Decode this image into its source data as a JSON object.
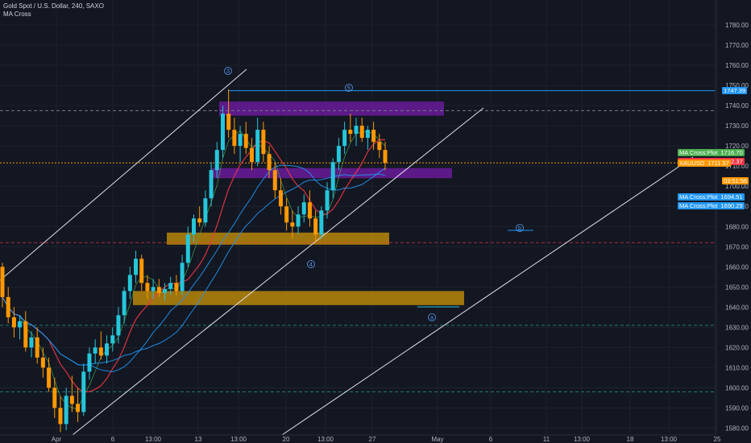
{
  "header": {
    "symbol_line": "Gold Spot / U.S. Dollar, 240, SAXO",
    "indicator": "MA Cross"
  },
  "price_tags": [
    {
      "label": "MA Cross:Plot",
      "value": "1716.70",
      "color": "#4caf50"
    },
    {
      "label": "MA Cross:Plot",
      "value": "1712.37",
      "color": "#f23645"
    },
    {
      "label": "XAUUSD",
      "value": "1711.57",
      "color": "#ff9800"
    },
    {
      "label": "",
      "value": "03:51:56",
      "color": "#ff9800"
    },
    {
      "label": "MA Cross:Plot",
      "value": "1694.51",
      "color": "#2196f3"
    },
    {
      "label": "MA Cross:Plot",
      "value": "1690.29",
      "color": "#2196f3"
    },
    {
      "label": "",
      "value": "1747.39",
      "color": "#2196f3"
    }
  ],
  "wave_labels": [
    "3",
    "4",
    "5",
    "a",
    "b"
  ],
  "colors": {
    "bg": "#131722",
    "up": "#26c6da",
    "down": "#ff9800",
    "grid": "#1e222d",
    "ma_red": "#f23645",
    "ma_blue": "#2196f3",
    "ma_green": "#4caf50",
    "zone_purple": "#7b1fa2",
    "zone_orange": "#b8860b"
  },
  "chart_data": {
    "type": "candlestick",
    "symbol": "XAUUSD",
    "timeframe": "240",
    "ylim": [
      1575,
      1790
    ],
    "y_ticks": [
      1580,
      1590,
      1600,
      1610,
      1620,
      1630,
      1640,
      1650,
      1660,
      1670,
      1680,
      1690,
      1700,
      1710,
      1720,
      1730,
      1740,
      1750,
      1760,
      1770,
      1780
    ],
    "x_ticks": [
      "Apr",
      "6",
      "13:00",
      "13",
      "13:00",
      "20",
      "13:00",
      "27",
      "May",
      "6",
      "11",
      "13:00",
      "18",
      "13:00",
      "25"
    ],
    "candles": [
      [
        1660,
        1662,
        1640,
        1645
      ],
      [
        1645,
        1650,
        1632,
        1635
      ],
      [
        1635,
        1640,
        1625,
        1630
      ],
      [
        1630,
        1636,
        1624,
        1633
      ],
      [
        1633,
        1638,
        1618,
        1620
      ],
      [
        1620,
        1628,
        1615,
        1625
      ],
      [
        1625,
        1630,
        1612,
        1615
      ],
      [
        1615,
        1620,
        1605,
        1610
      ],
      [
        1610,
        1615,
        1598,
        1600
      ],
      [
        1600,
        1605,
        1585,
        1590
      ],
      [
        1590,
        1596,
        1578,
        1582
      ],
      [
        1582,
        1600,
        1579,
        1596
      ],
      [
        1596,
        1606,
        1588,
        1592
      ],
      [
        1592,
        1600,
        1583,
        1588
      ],
      [
        1588,
        1612,
        1586,
        1608
      ],
      [
        1608,
        1620,
        1604,
        1617
      ],
      [
        1617,
        1624,
        1612,
        1620
      ],
      [
        1620,
        1628,
        1614,
        1616
      ],
      [
        1616,
        1626,
        1612,
        1622
      ],
      [
        1622,
        1630,
        1618,
        1626
      ],
      [
        1626,
        1640,
        1622,
        1636
      ],
      [
        1636,
        1650,
        1632,
        1648
      ],
      [
        1648,
        1660,
        1644,
        1656
      ],
      [
        1656,
        1668,
        1652,
        1664
      ],
      [
        1664,
        1666,
        1648,
        1652
      ],
      [
        1652,
        1656,
        1644,
        1648
      ],
      [
        1648,
        1654,
        1644,
        1650
      ],
      [
        1650,
        1654,
        1645,
        1647
      ],
      [
        1647,
        1652,
        1643,
        1649
      ],
      [
        1649,
        1655,
        1646,
        1652
      ],
      [
        1652,
        1656,
        1646,
        1648
      ],
      [
        1648,
        1666,
        1646,
        1662
      ],
      [
        1662,
        1680,
        1660,
        1676
      ],
      [
        1676,
        1686,
        1672,
        1684
      ],
      [
        1684,
        1690,
        1680,
        1682
      ],
      [
        1682,
        1698,
        1680,
        1694
      ],
      [
        1694,
        1712,
        1690,
        1708
      ],
      [
        1708,
        1722,
        1704,
        1718
      ],
      [
        1718,
        1740,
        1714,
        1736
      ],
      [
        1736,
        1748,
        1724,
        1728
      ],
      [
        1728,
        1734,
        1716,
        1720
      ],
      [
        1720,
        1730,
        1712,
        1726
      ],
      [
        1726,
        1732,
        1716,
        1719
      ],
      [
        1719,
        1724,
        1708,
        1712
      ],
      [
        1712,
        1734,
        1710,
        1728
      ],
      [
        1728,
        1732,
        1712,
        1716
      ],
      [
        1716,
        1720,
        1704,
        1708
      ],
      [
        1708,
        1712,
        1694,
        1698
      ],
      [
        1698,
        1704,
        1686,
        1690
      ],
      [
        1690,
        1694,
        1678,
        1682
      ],
      [
        1682,
        1688,
        1674,
        1680
      ],
      [
        1680,
        1690,
        1676,
        1686
      ],
      [
        1686,
        1696,
        1682,
        1692
      ],
      [
        1692,
        1698,
        1680,
        1684
      ],
      [
        1684,
        1688,
        1672,
        1676
      ],
      [
        1676,
        1690,
        1674,
        1688
      ],
      [
        1688,
        1702,
        1684,
        1698
      ],
      [
        1698,
        1714,
        1694,
        1712
      ],
      [
        1712,
        1724,
        1708,
        1720
      ],
      [
        1720,
        1732,
        1716,
        1728
      ],
      [
        1728,
        1736,
        1722,
        1726
      ],
      [
        1726,
        1734,
        1720,
        1730
      ],
      [
        1730,
        1734,
        1722,
        1724
      ],
      [
        1724,
        1730,
        1718,
        1728
      ],
      [
        1728,
        1732,
        1718,
        1722
      ],
      [
        1722,
        1726,
        1714,
        1718
      ],
      [
        1718,
        1722,
        1708,
        1711.57
      ]
    ],
    "moving_averages": [
      {
        "color": "green",
        "last_value": 1716.7
      },
      {
        "color": "red",
        "last_value": 1712.37
      },
      {
        "color": "blue",
        "last_value": 1694.51
      },
      {
        "color": "blue",
        "last_value": 1690.29
      }
    ],
    "current_price": 1711.57,
    "countdown": "03:51:56",
    "zones": [
      {
        "color": "purple",
        "low": 1735,
        "high": 1742
      },
      {
        "color": "purple",
        "low": 1704,
        "high": 1709
      },
      {
        "color": "orange",
        "low": 1671,
        "high": 1677
      },
      {
        "color": "orange",
        "low": 1641,
        "high": 1648
      }
    ],
    "horizontal_levels": [
      1747.39,
      1737.5,
      1672,
      1631,
      1598
    ]
  }
}
